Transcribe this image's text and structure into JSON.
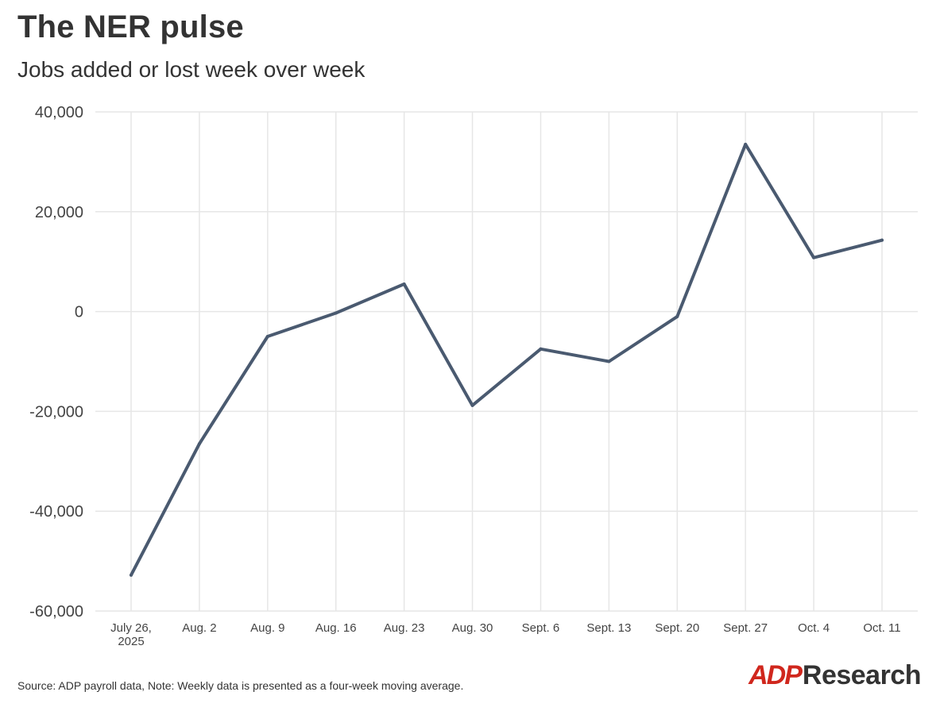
{
  "header": {
    "title": "The NER pulse",
    "subtitle": "Jobs added or lost week over week"
  },
  "footer": {
    "source": "Source: ADP payroll data, Note: Weekly data is presented as a four-week moving average.",
    "logo_brand": "ADP",
    "logo_word": "Research"
  },
  "colors": {
    "line": "#4a5a70",
    "grid": "#e6e6e6",
    "logo_red": "#d0271d"
  },
  "chart_data": {
    "type": "line",
    "title": "The NER pulse",
    "subtitle": "Jobs added or lost week over week",
    "categories": [
      "July 26, 2025",
      "Aug. 2",
      "Aug. 9",
      "Aug. 16",
      "Aug. 23",
      "Aug. 30",
      "Sept. 6",
      "Sept. 13",
      "Sept. 20",
      "Sept. 27",
      "Oct. 4",
      "Oct. 11"
    ],
    "category_labels": [
      [
        "July 26,",
        "2025"
      ],
      [
        "Aug. 2"
      ],
      [
        "Aug. 9"
      ],
      [
        "Aug. 16"
      ],
      [
        "Aug. 23"
      ],
      [
        "Aug. 30"
      ],
      [
        "Sept. 6"
      ],
      [
        "Sept. 13"
      ],
      [
        "Sept. 20"
      ],
      [
        "Sept. 27"
      ],
      [
        "Oct. 4"
      ],
      [
        "Oct. 11"
      ]
    ],
    "values": [
      -52800,
      -26500,
      -5000,
      -300,
      5500,
      -18800,
      -7500,
      -10000,
      -1000,
      33500,
      10800,
      14300
    ],
    "ylim": [
      -60000,
      40000
    ],
    "yticks": [
      40000,
      20000,
      0,
      -20000,
      -40000,
      -60000
    ],
    "ytick_labels": [
      "40,000",
      "20,000",
      "0",
      "-20,000",
      "-40,000",
      "-60,000"
    ],
    "grid": true,
    "legend": false
  }
}
